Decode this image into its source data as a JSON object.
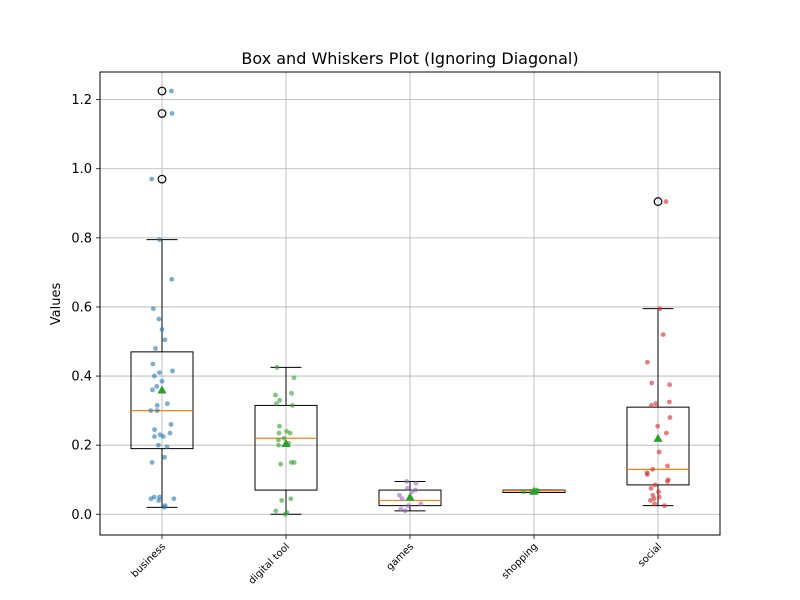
{
  "chart_data": {
    "type": "box",
    "title": "Box and Whiskers Plot (Ignoring Diagonal)",
    "xlabel": "",
    "ylabel": "Values",
    "ylim": [
      -0.06,
      1.28
    ],
    "yticks": [
      0.0,
      0.2,
      0.4,
      0.6,
      0.8,
      1.0,
      1.2
    ],
    "ytick_labels": [
      "0.0",
      "0.2",
      "0.4",
      "0.6",
      "0.8",
      "1.0",
      "1.2"
    ],
    "grid": true,
    "categories": [
      "business",
      "digital tool",
      "games",
      "shopping",
      "social"
    ],
    "colors": {
      "median": "#ff7f0e",
      "mean_marker": "#2ca02c",
      "grid": "#b0b0b0",
      "points": [
        "#1f77b4",
        "#2ca02c",
        "#9467bd",
        "#2ca02c",
        "#d62728"
      ]
    },
    "boxes": [
      {
        "category": "business",
        "whisker_low": 0.02,
        "q1": 0.19,
        "median": 0.3,
        "q3": 0.47,
        "whisker_high": 0.795,
        "mean": 0.36,
        "outliers": [
          0.97,
          1.16,
          1.225
        ]
      },
      {
        "category": "digital tool",
        "whisker_low": 0.0,
        "q1": 0.07,
        "median": 0.22,
        "q3": 0.315,
        "whisker_high": 0.425,
        "mean": 0.205,
        "outliers": []
      },
      {
        "category": "games",
        "whisker_low": 0.01,
        "q1": 0.025,
        "median": 0.04,
        "q3": 0.07,
        "whisker_high": 0.095,
        "mean": 0.05,
        "outliers": []
      },
      {
        "category": "shopping",
        "whisker_low": 0.063,
        "q1": 0.063,
        "median": 0.068,
        "q3": 0.07,
        "whisker_high": 0.07,
        "mean": 0.067,
        "outliers": []
      },
      {
        "category": "social",
        "whisker_low": 0.025,
        "q1": 0.085,
        "median": 0.13,
        "q3": 0.31,
        "whisker_high": 0.595,
        "mean": 0.22,
        "outliers": [
          0.905
        ]
      }
    ],
    "points": [
      {
        "category": "business",
        "values": [
          1.225,
          1.16,
          0.97,
          0.795,
          0.68,
          0.595,
          0.565,
          0.535,
          0.505,
          0.48,
          0.435,
          0.415,
          0.41,
          0.4,
          0.385,
          0.37,
          0.36,
          0.32,
          0.315,
          0.3,
          0.3,
          0.26,
          0.245,
          0.235,
          0.23,
          0.225,
          0.225,
          0.2,
          0.195,
          0.165,
          0.15,
          0.05,
          0.05,
          0.045,
          0.045,
          0.04,
          0.025,
          0.02
        ]
      },
      {
        "category": "digital tool",
        "values": [
          0.425,
          0.395,
          0.35,
          0.345,
          0.33,
          0.32,
          0.315,
          0.255,
          0.24,
          0.235,
          0.235,
          0.22,
          0.215,
          0.205,
          0.2,
          0.15,
          0.15,
          0.145,
          0.045,
          0.04,
          0.01,
          0.005,
          0.0
        ]
      },
      {
        "category": "games",
        "values": [
          0.095,
          0.09,
          0.075,
          0.07,
          0.065,
          0.055,
          0.045,
          0.03,
          0.025,
          0.015,
          0.01
        ]
      },
      {
        "category": "shopping",
        "values": [
          0.07,
          0.068,
          0.065,
          0.063
        ]
      },
      {
        "category": "social",
        "values": [
          0.905,
          0.595,
          0.52,
          0.44,
          0.38,
          0.375,
          0.325,
          0.32,
          0.315,
          0.28,
          0.255,
          0.235,
          0.18,
          0.14,
          0.13,
          0.12,
          0.115,
          0.1,
          0.095,
          0.085,
          0.075,
          0.065,
          0.055,
          0.05,
          0.045,
          0.04,
          0.03,
          0.025
        ]
      }
    ]
  }
}
